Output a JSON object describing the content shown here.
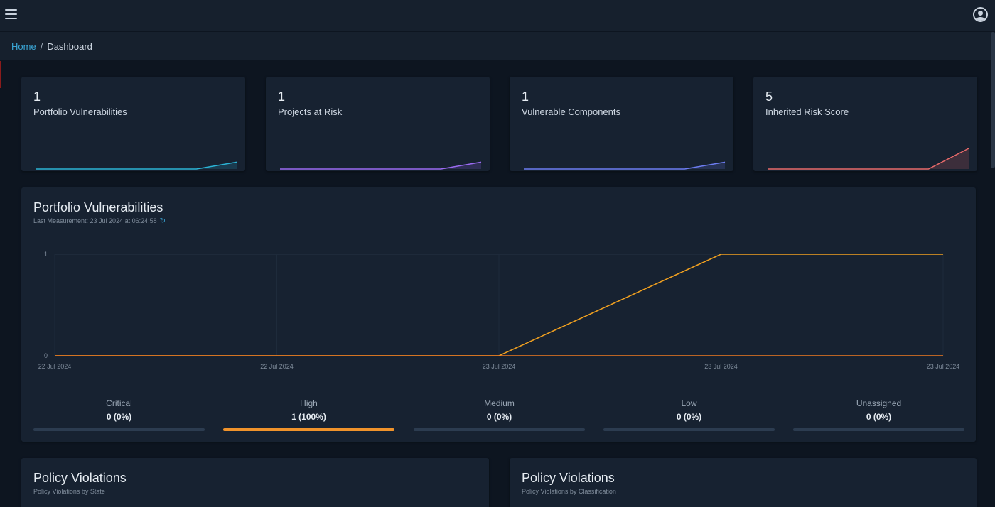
{
  "header": {
    "menu_icon": "hamburger-icon",
    "user_icon": "user-circle-icon"
  },
  "breadcrumb": {
    "home": "Home",
    "separator": "/",
    "current": "Dashboard"
  },
  "stats": [
    {
      "value": "1",
      "label": "Portfolio Vulnerabilities",
      "color": "#2bb4d6",
      "trend": [
        0,
        0,
        0,
        0,
        0,
        1
      ]
    },
    {
      "value": "1",
      "label": "Projects at Risk",
      "color": "#9b6bf2",
      "trend": [
        0,
        0,
        0,
        0,
        0,
        1
      ]
    },
    {
      "value": "1",
      "label": "Vulnerable Components",
      "color": "#6d7df2",
      "trend": [
        0,
        0,
        0,
        0,
        0,
        1
      ]
    },
    {
      "value": "5",
      "label": "Inherited Risk Score",
      "color": "#e86a6a",
      "trend": [
        0,
        0,
        0,
        0,
        0,
        5
      ]
    }
  ],
  "portfolio": {
    "title": "Portfolio Vulnerabilities",
    "subtitle": "Last Measurement: 23 Jul 2024 at 06:24:58",
    "refresh_icon": "refresh-icon"
  },
  "chart_data": {
    "type": "line",
    "x": [
      "22 Jul 2024",
      "22 Jul 2024",
      "23 Jul 2024",
      "23 Jul 2024",
      "23 Jul 2024"
    ],
    "ylim": [
      0,
      1
    ],
    "yticks": [
      "0",
      "1"
    ],
    "grid": true,
    "series": [
      {
        "color": "#f0a020",
        "values": [
          0,
          0,
          0,
          1,
          1
        ]
      },
      {
        "color": "#f07a20",
        "values": [
          0,
          0,
          0,
          0,
          0
        ]
      }
    ]
  },
  "severity": [
    {
      "name": "Critical",
      "value": "0 (0%)",
      "fraction": 0
    },
    {
      "name": "High",
      "value": "1 (100%)",
      "fraction": 1
    },
    {
      "name": "Medium",
      "value": "0 (0%)",
      "fraction": 0
    },
    {
      "name": "Low",
      "value": "0 (0%)",
      "fraction": 0
    },
    {
      "name": "Unassigned",
      "value": "0 (0%)",
      "fraction": 0
    }
  ],
  "policy": [
    {
      "title": "Policy Violations",
      "subtitle": "Policy Violations by State"
    },
    {
      "title": "Policy Violations",
      "subtitle": "Policy Violations by Classification"
    }
  ]
}
